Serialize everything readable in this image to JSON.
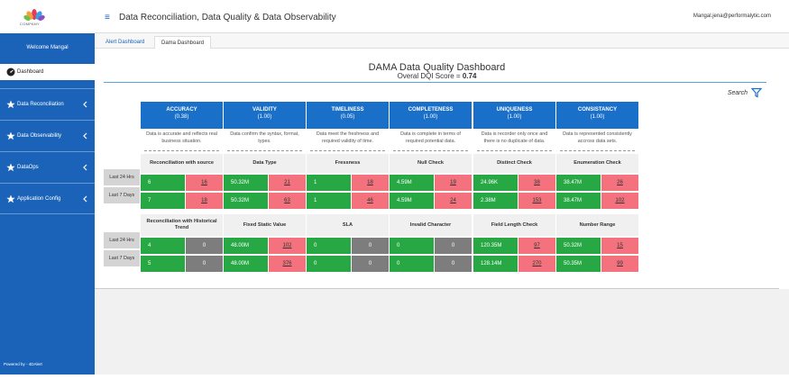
{
  "brand": {
    "logo_text": "COMPANY"
  },
  "sidebar": {
    "welcome": "Welcome Mangal",
    "dashboard": "Dashboard",
    "items": [
      {
        "label": "Data Reconciliation"
      },
      {
        "label": "Data Observability"
      },
      {
        "label": "DataOps"
      },
      {
        "label": "Application Config"
      }
    ],
    "powered": "Powered by - 4DAlert"
  },
  "header": {
    "title": "Data Reconciliation, Data Quality & Data Observability",
    "user": "Mangal.jena@performalytic.com"
  },
  "tabs": [
    "Alert Dashboard",
    "Dama Dashboard"
  ],
  "main": {
    "title": "DAMA Data Quality Dashboard",
    "dqi_label": "Overal DQI Score = ",
    "dqi_value": "0.74",
    "search_label": "Search"
  },
  "row_labels": [
    "Last 24 Hrs",
    "Last 7 Days"
  ],
  "colors": {
    "primary": "#1a63b8",
    "header_blue": "#1a6fc9",
    "pass": "#27a844",
    "fail": "#f3727d",
    "neutral": "#7d7d7d"
  },
  "dimensions": [
    {
      "name": "ACCURACY",
      "score": "(0.38)",
      "desc": "Data is accurate and reflects real business situation.",
      "checks": [
        {
          "label": "Reconciliation with source",
          "rows": [
            [
              "6",
              "16"
            ],
            [
              "7",
              "18"
            ]
          ],
          "second": "red"
        },
        {
          "label": "Reconciliation with Historical Trend",
          "rows": [
            [
              "4",
              "0"
            ],
            [
              "5",
              "0"
            ]
          ],
          "second": "grey"
        }
      ]
    },
    {
      "name": "VALIDITY",
      "score": "(1.00)",
      "desc": "Data confirm the syntax, format, types.",
      "checks": [
        {
          "label": "Data Type",
          "rows": [
            [
              "50.32M",
              "21"
            ],
            [
              "50.32M",
              "63"
            ]
          ],
          "second": "red"
        },
        {
          "label": "Fixed Static Value",
          "rows": [
            [
              "48.00M",
              "102"
            ],
            [
              "48.00M",
              "376"
            ]
          ],
          "second": "red"
        }
      ]
    },
    {
      "name": "TIMELINESS",
      "score": "(0.05)",
      "desc": "Data meet the freshness and required validity of time.",
      "checks": [
        {
          "label": "Fressness",
          "rows": [
            [
              "1",
              "18"
            ],
            [
              "1",
              "46"
            ]
          ],
          "second": "red"
        },
        {
          "label": "SLA",
          "rows": [
            [
              "0",
              "0"
            ],
            [
              "0",
              "0"
            ]
          ],
          "second": "grey"
        }
      ]
    },
    {
      "name": "COMPLETENESS",
      "score": "(1.00)",
      "desc": "Data is complete in terms of required potential data.",
      "checks": [
        {
          "label": "Null Check",
          "rows": [
            [
              "4.59M",
              "19"
            ],
            [
              "4.59M",
              "24"
            ]
          ],
          "second": "red"
        },
        {
          "label": "Invalid Character",
          "rows": [
            [
              "0",
              "0"
            ],
            [
              "0",
              "0"
            ]
          ],
          "second": "grey"
        }
      ]
    },
    {
      "name": "UNIQUENESS",
      "score": "(1.00)",
      "desc": "Data is recorder only once and there is no duplicate of data.",
      "checks": [
        {
          "label": "Distinct Check",
          "rows": [
            [
              "24.96K",
              "38"
            ],
            [
              "2.38M",
              "153"
            ]
          ],
          "second": "red"
        },
        {
          "label": "Field Length Check",
          "rows": [
            [
              "120.35M",
              "97"
            ],
            [
              "128.14M",
              "270"
            ]
          ],
          "second": "red"
        }
      ]
    },
    {
      "name": "CONSISTANCY",
      "score": "(1.00)",
      "desc": "Data is represented consistently accross data sets.",
      "checks": [
        {
          "label": "Enumeration Check",
          "rows": [
            [
              "38.47M",
              "26"
            ],
            [
              "38.47M",
              "102"
            ]
          ],
          "second": "red"
        },
        {
          "label": "Number Range",
          "rows": [
            [
              "50.32M",
              "15"
            ],
            [
              "50.35M",
              "99"
            ]
          ],
          "second": "red"
        }
      ]
    }
  ]
}
